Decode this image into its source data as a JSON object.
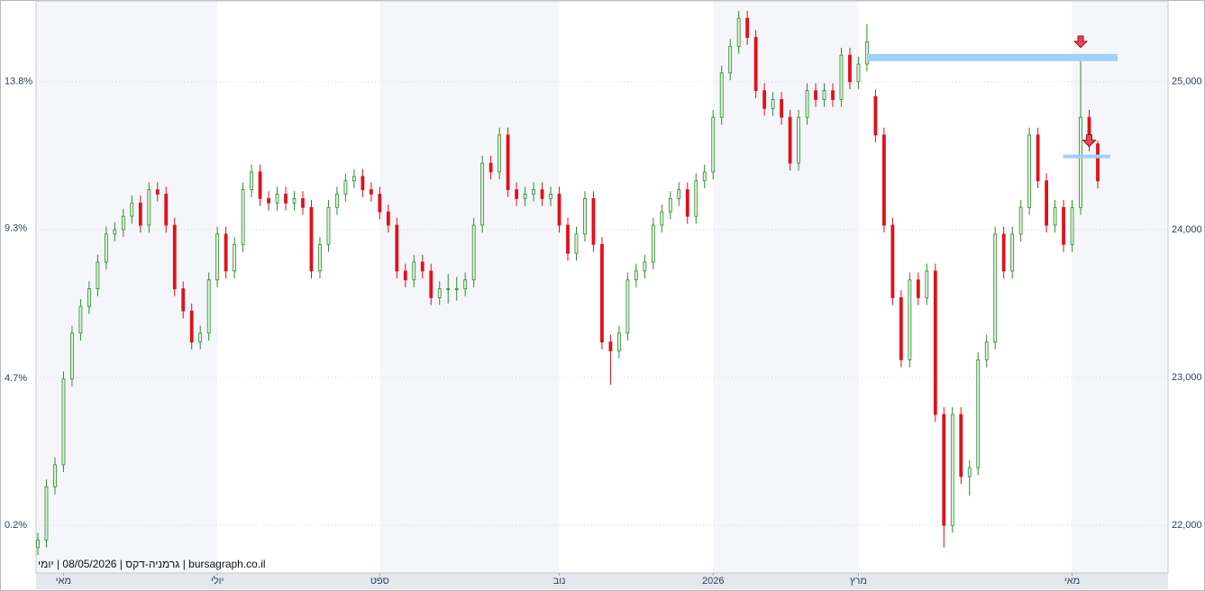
{
  "chart_data": {
    "type": "candlestick",
    "footer": "bursagraph.co.il | גרמניה-דקס | 08/05/2026 | יומי",
    "ylim": [
      21678,
      25547
    ],
    "yticks": [
      {
        "value": 22000,
        "label": "22,000"
      },
      {
        "value": 23000,
        "label": "23,000"
      },
      {
        "value": 24000,
        "label": "24,000"
      },
      {
        "value": 25000,
        "label": "25,000"
      }
    ],
    "y2lim": [
      -1.26,
      16.28
    ],
    "y2ticks": [
      {
        "value": 0.2,
        "label": "0.2%"
      },
      {
        "value": 4.7,
        "label": "4.7%"
      },
      {
        "value": 9.3,
        "label": "9.3%"
      },
      {
        "value": 13.8,
        "label": "13.8%"
      }
    ],
    "xticks": [
      {
        "value": 3,
        "label": "מאי"
      },
      {
        "value": 21,
        "label": "יולי"
      },
      {
        "value": 40,
        "label": "ספט"
      },
      {
        "value": 61,
        "label": "נוב"
      },
      {
        "value": 79,
        "label": "2026"
      },
      {
        "value": 96,
        "label": "מרץ"
      },
      {
        "value": 121,
        "label": "מאי"
      }
    ],
    "grid": true,
    "up_color": "#2e8b2e",
    "down_color": "#e0101c",
    "level_color": "#9fd0f7",
    "levels": [
      25164,
      24495
    ],
    "candles": [
      [
        21850,
        21950,
        21800,
        21900
      ],
      [
        21900,
        22310,
        21850,
        22260
      ],
      [
        22260,
        22460,
        22210,
        22410
      ],
      [
        22410,
        23040,
        22360,
        22990
      ],
      [
        22990,
        23350,
        22940,
        23300
      ],
      [
        23300,
        23530,
        23250,
        23480
      ],
      [
        23480,
        23650,
        23430,
        23600
      ],
      [
        23600,
        23830,
        23550,
        23780
      ],
      [
        23780,
        24020,
        23730,
        23970
      ],
      [
        23970,
        24050,
        23920,
        24000
      ],
      [
        24000,
        24140,
        23950,
        24090
      ],
      [
        24090,
        24230,
        24040,
        24180
      ],
      [
        24180,
        24230,
        23980,
        24030
      ],
      [
        24030,
        24320,
        23980,
        24270
      ],
      [
        24270,
        24320,
        24190,
        24240
      ],
      [
        24240,
        24290,
        23980,
        24030
      ],
      [
        24030,
        24080,
        23550,
        23600
      ],
      [
        23600,
        23650,
        23400,
        23450
      ],
      [
        23450,
        23500,
        23190,
        23240
      ],
      [
        23240,
        23350,
        23190,
        23300
      ],
      [
        23300,
        23710,
        23250,
        23660
      ],
      [
        23660,
        24020,
        23610,
        23970
      ],
      [
        23970,
        24020,
        23670,
        23720
      ],
      [
        23720,
        23950,
        23670,
        23900
      ],
      [
        23900,
        24320,
        23850,
        24270
      ],
      [
        24270,
        24440,
        24220,
        24390
      ],
      [
        24390,
        24440,
        24160,
        24210
      ],
      [
        24210,
        24260,
        24130,
        24180
      ],
      [
        24180,
        24290,
        24130,
        24240
      ],
      [
        24240,
        24290,
        24130,
        24180
      ],
      [
        24180,
        24260,
        24130,
        24210
      ],
      [
        24210,
        24260,
        24100,
        24150
      ],
      [
        24150,
        24200,
        23670,
        23720
      ],
      [
        23720,
        23950,
        23670,
        23900
      ],
      [
        23900,
        24200,
        23850,
        24150
      ],
      [
        24150,
        24290,
        24100,
        24240
      ],
      [
        24240,
        24380,
        24190,
        24330
      ],
      [
        24330,
        24410,
        24280,
        24360
      ],
      [
        24360,
        24410,
        24220,
        24270
      ],
      [
        24270,
        24320,
        24190,
        24240
      ],
      [
        24240,
        24290,
        24070,
        24120
      ],
      [
        24120,
        24170,
        23980,
        24030
      ],
      [
        24030,
        24080,
        23670,
        23720
      ],
      [
        23720,
        23770,
        23610,
        23660
      ],
      [
        23660,
        23830,
        23610,
        23780
      ],
      [
        23780,
        23830,
        23670,
        23720
      ],
      [
        23720,
        23770,
        23490,
        23540
      ],
      [
        23540,
        23650,
        23490,
        23600
      ],
      [
        23600,
        23700,
        23500,
        23600
      ],
      [
        23600,
        23680,
        23520,
        23600
      ],
      [
        23600,
        23710,
        23550,
        23660
      ],
      [
        23660,
        24080,
        23610,
        24030
      ],
      [
        24030,
        24500,
        23980,
        24450
      ],
      [
        24450,
        24500,
        24340,
        24390
      ],
      [
        24390,
        24690,
        24340,
        24640
      ],
      [
        24640,
        24690,
        24220,
        24270
      ],
      [
        24270,
        24320,
        24160,
        24210
      ],
      [
        24210,
        24290,
        24160,
        24240
      ],
      [
        24240,
        24320,
        24190,
        24270
      ],
      [
        24270,
        24320,
        24160,
        24210
      ],
      [
        24210,
        24290,
        24160,
        24240
      ],
      [
        24240,
        24290,
        23980,
        24030
      ],
      [
        24030,
        24080,
        23790,
        23840
      ],
      [
        23840,
        24020,
        23790,
        23970
      ],
      [
        23970,
        24260,
        23920,
        24210
      ],
      [
        24210,
        24260,
        23850,
        23900
      ],
      [
        23900,
        23950,
        23190,
        23240
      ],
      [
        23240,
        23290,
        22950,
        23180
      ],
      [
        23180,
        23350,
        23130,
        23300
      ],
      [
        23300,
        23710,
        23250,
        23660
      ],
      [
        23660,
        23770,
        23610,
        23720
      ],
      [
        23720,
        23830,
        23670,
        23780
      ],
      [
        23780,
        24080,
        23730,
        24030
      ],
      [
        24030,
        24170,
        23980,
        24120
      ],
      [
        24120,
        24260,
        24070,
        24210
      ],
      [
        24210,
        24320,
        24160,
        24270
      ],
      [
        24270,
        24320,
        24040,
        24090
      ],
      [
        24090,
        24380,
        24040,
        24330
      ],
      [
        24330,
        24440,
        24280,
        24390
      ],
      [
        24390,
        24810,
        24340,
        24760
      ],
      [
        24760,
        25110,
        24710,
        25060
      ],
      [
        25060,
        25290,
        25010,
        25240
      ],
      [
        25240,
        25480,
        25190,
        25430
      ],
      [
        25430,
        25480,
        25250,
        25300
      ],
      [
        25300,
        25350,
        24890,
        24940
      ],
      [
        24940,
        24990,
        24770,
        24820
      ],
      [
        24820,
        24930,
        24770,
        24880
      ],
      [
        24880,
        24930,
        24710,
        24760
      ],
      [
        24760,
        24810,
        24400,
        24450
      ],
      [
        24450,
        24810,
        24400,
        24760
      ],
      [
        24760,
        24990,
        24710,
        24940
      ],
      [
        24940,
        24990,
        24830,
        24880
      ],
      [
        24880,
        24990,
        24830,
        24940
      ],
      [
        24940,
        24990,
        24830,
        24880
      ],
      [
        24880,
        25230,
        24830,
        25180
      ],
      [
        25180,
        25230,
        24950,
        25000
      ],
      [
        25000,
        25170,
        24950,
        25120
      ],
      [
        25120,
        25390,
        25070,
        25270
      ],
      [
        24900,
        24950,
        24590,
        24640
      ],
      [
        24640,
        24690,
        23980,
        24030
      ],
      [
        24030,
        24080,
        23490,
        23540
      ],
      [
        23540,
        23590,
        23070,
        23120
      ],
      [
        23120,
        23710,
        23070,
        23660
      ],
      [
        23660,
        23710,
        23490,
        23540
      ],
      [
        23540,
        23770,
        23490,
        23720
      ],
      [
        23720,
        23770,
        22700,
        22750
      ],
      [
        22750,
        22800,
        21850,
        22000
      ],
      [
        22000,
        22800,
        21950,
        22750
      ],
      [
        22750,
        22800,
        22280,
        22330
      ],
      [
        22330,
        22440,
        22200,
        22390
      ],
      [
        22390,
        23170,
        22340,
        23120
      ],
      [
        23120,
        23290,
        23070,
        23240
      ],
      [
        23240,
        24020,
        23190,
        23970
      ],
      [
        23970,
        24020,
        23670,
        23720
      ],
      [
        23720,
        24020,
        23670,
        23970
      ],
      [
        23970,
        24200,
        23920,
        24150
      ],
      [
        24150,
        24690,
        24100,
        24640
      ],
      [
        24640,
        24690,
        24280,
        24330
      ],
      [
        24330,
        24380,
        23980,
        24030
      ],
      [
        24030,
        24200,
        23980,
        24150
      ],
      [
        24150,
        24200,
        23850,
        23900
      ],
      [
        23900,
        24200,
        23850,
        24150
      ],
      [
        24150,
        25160,
        24100,
        24760
      ],
      [
        24760,
        24810,
        24530,
        24580
      ],
      [
        24580,
        24600,
        24280,
        24330
      ]
    ]
  }
}
